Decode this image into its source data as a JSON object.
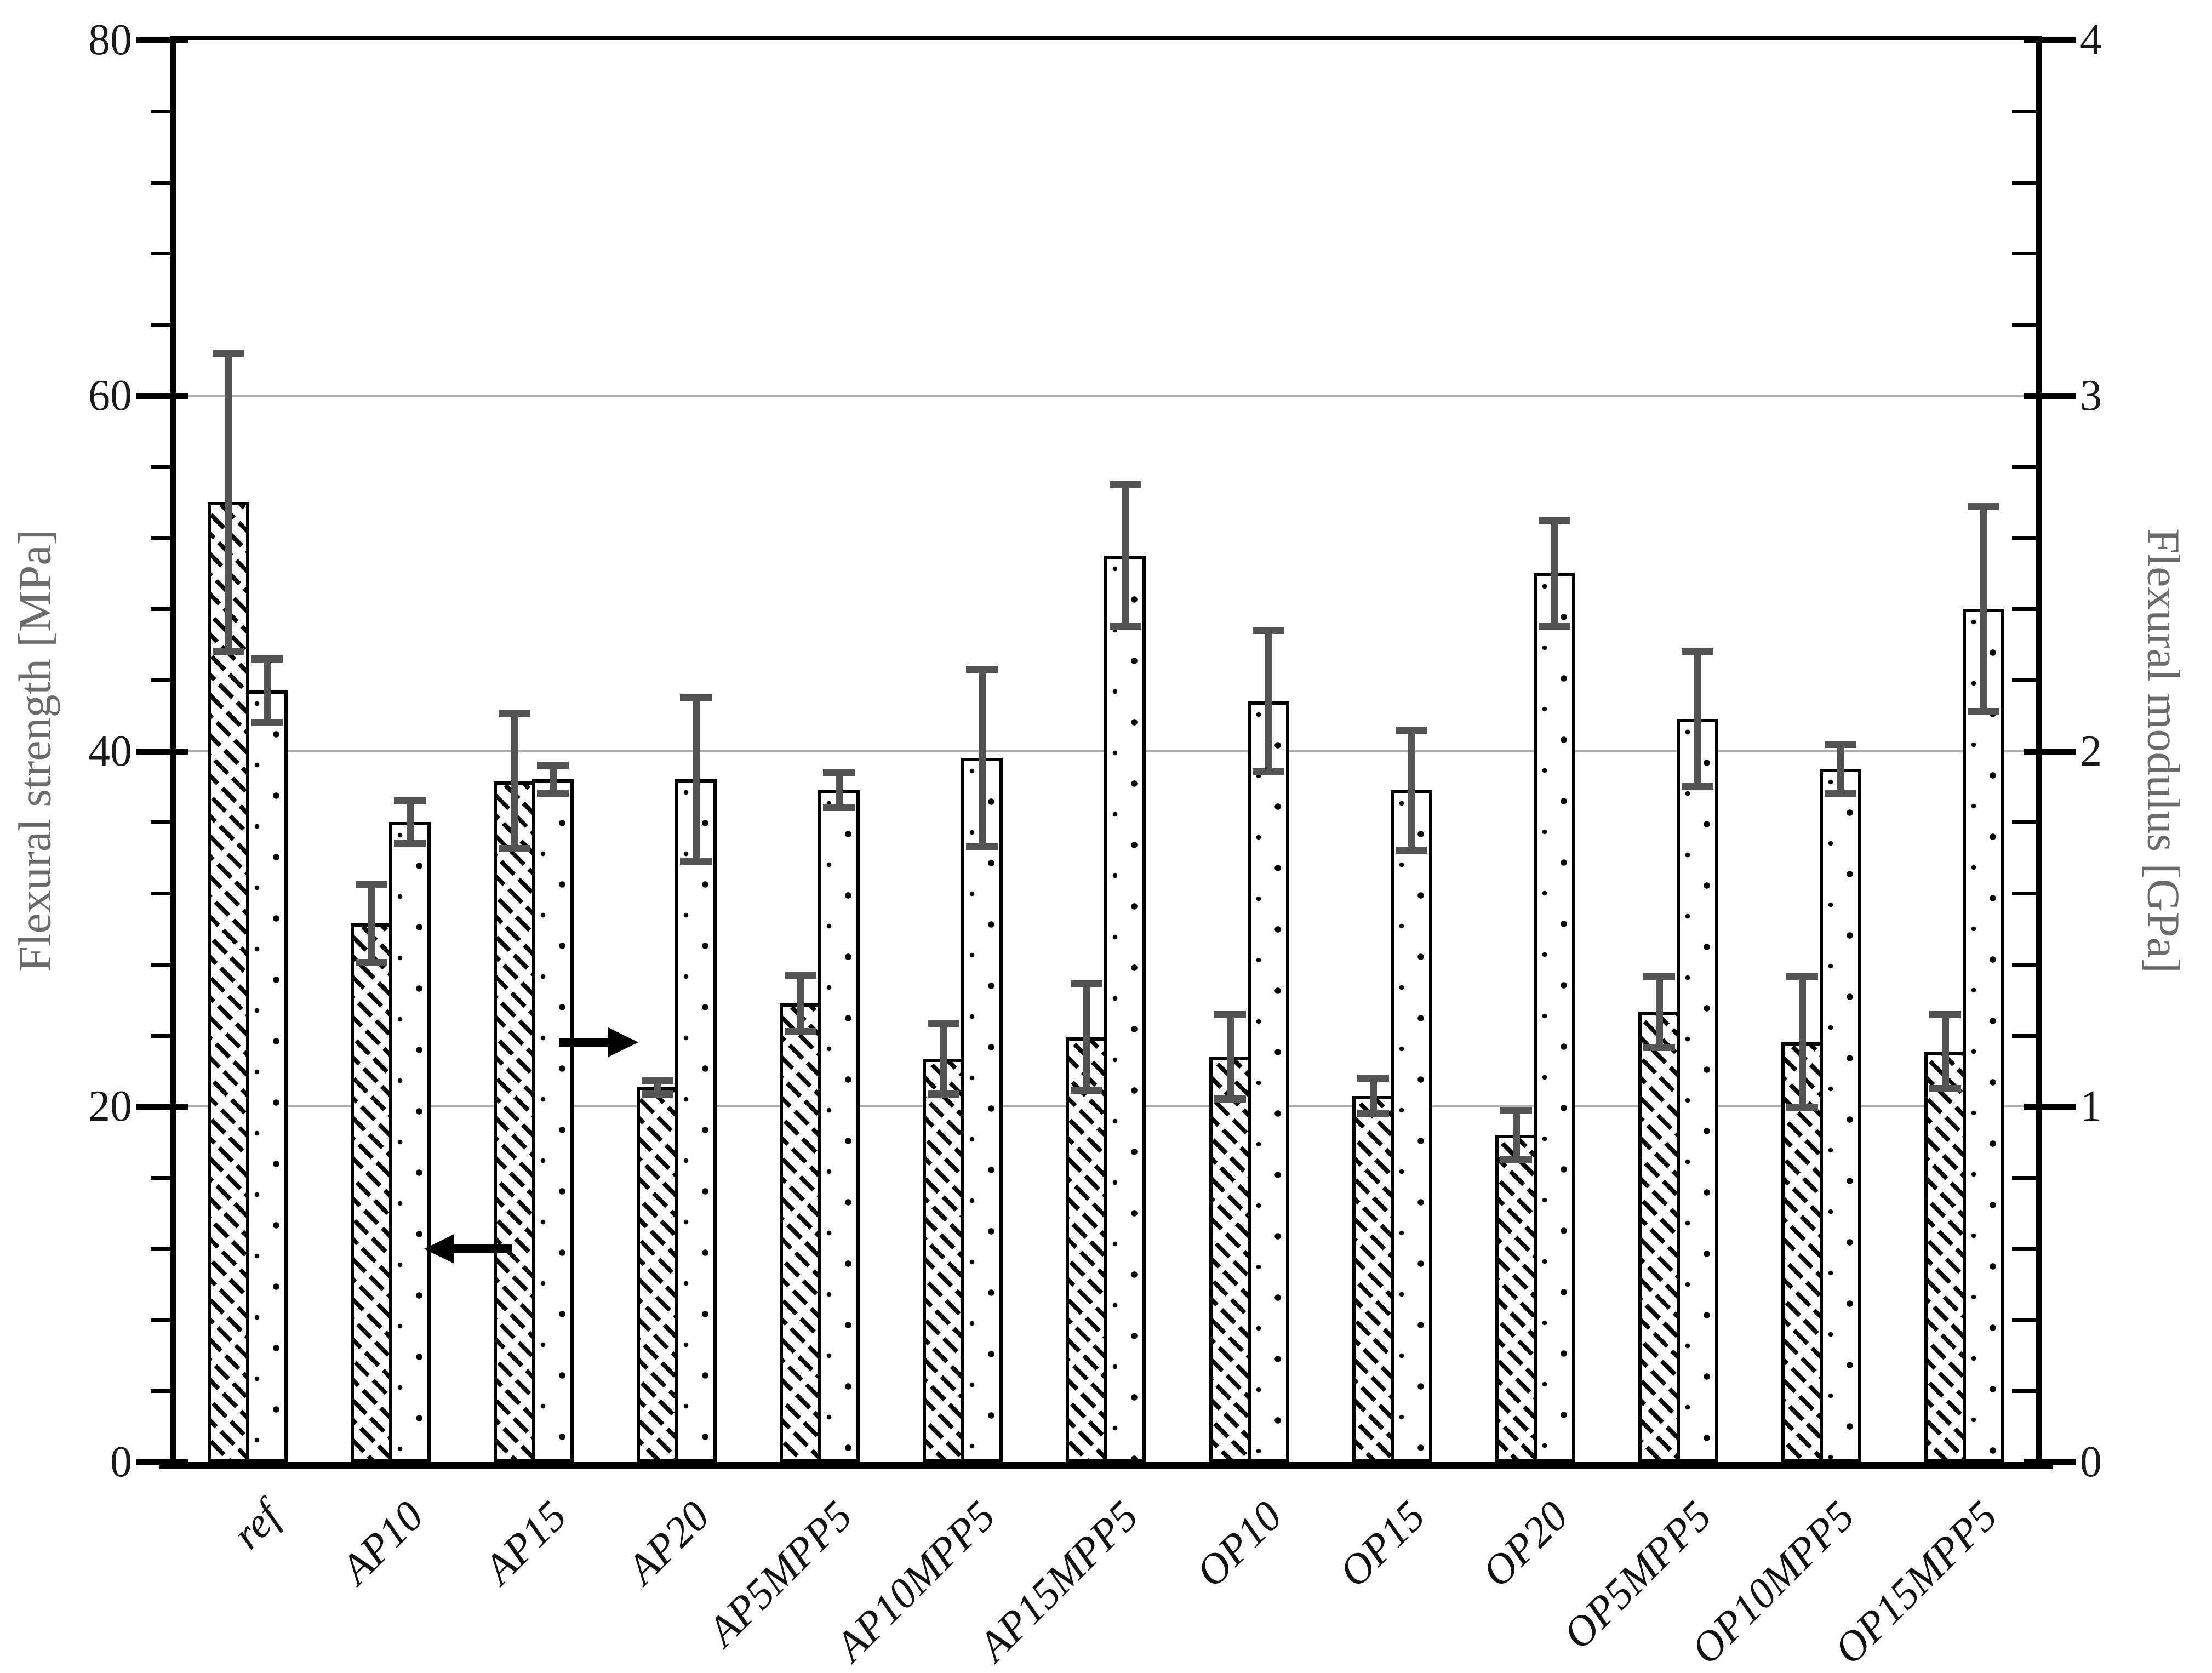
{
  "chart_data": {
    "type": "bar",
    "title": "",
    "categories": [
      "ref",
      "AP10",
      "AP15",
      "AP20",
      "AP5MPP5",
      "AP10MPP5",
      "AP15MPP5",
      "OP10",
      "OP15",
      "OP20",
      "OP5MPP5",
      "OP10MPP5",
      "OP15MPP5"
    ],
    "series": [
      {
        "name": "Flexural strength",
        "axis": "left",
        "unit": "MPa",
        "pattern": "diagonal-hatch",
        "values": [
          54.0,
          30.3,
          38.3,
          21.1,
          25.8,
          22.7,
          23.9,
          22.8,
          20.6,
          18.4,
          25.3,
          23.6,
          23.1
        ],
        "errors": [
          8.4,
          2.2,
          3.8,
          0.4,
          1.6,
          2.0,
          3.0,
          2.4,
          1.0,
          1.4,
          2.0,
          3.7,
          2.1
        ]
      },
      {
        "name": "Flexural modulus",
        "axis": "right",
        "unit": "GPa",
        "pattern": "dots",
        "values": [
          2.17,
          1.8,
          1.92,
          1.92,
          1.89,
          1.98,
          2.55,
          2.14,
          1.89,
          2.5,
          2.09,
          1.95,
          2.4
        ],
        "errors": [
          0.09,
          0.06,
          0.04,
          0.23,
          0.05,
          0.25,
          0.2,
          0.2,
          0.17,
          0.15,
          0.19,
          0.07,
          0.29
        ]
      }
    ],
    "left_axis": {
      "label": "Flexural strength [MPa]",
      "min": 0,
      "max": 80,
      "major_ticks": [
        0,
        20,
        40,
        60,
        80
      ],
      "minor_step": 4
    },
    "right_axis": {
      "label": "Flexural modulus [GPa]",
      "min": 0,
      "max": 4,
      "major_ticks": [
        0,
        1,
        2,
        3,
        4
      ],
      "minor_step": 0.2
    },
    "gridlines_mpa": [
      20,
      40,
      60
    ],
    "legend": "none",
    "annotations": [
      {
        "type": "arrow",
        "direction": "left",
        "points_to_axis": "left",
        "y_value_mpa": 12.0,
        "tail_frac": 0.1806,
        "tip_frac": 0.1334
      },
      {
        "type": "arrow",
        "direction": "right",
        "points_to_axis": "right",
        "y_value_mpa": 23.6,
        "tail_frac": 0.206,
        "tip_frac": 0.2486
      }
    ],
    "colors": {
      "bar_fill": "#ffffff",
      "bar_border": "#000000",
      "error_bar": "#545454",
      "gridline": "#b3b3b3",
      "axis": "#000000",
      "axis_title": "#6b6b6b",
      "tick_label": "#1a1a1a"
    }
  }
}
